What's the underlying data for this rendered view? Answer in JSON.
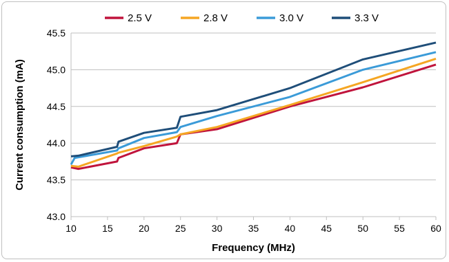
{
  "chart_data": {
    "type": "line",
    "title": "",
    "xlabel": "Frequency (MHz)",
    "ylabel": "Current consumption (mA)",
    "xlim": [
      10,
      60
    ],
    "ylim": [
      43.0,
      45.5
    ],
    "xticks": [
      "10",
      "15",
      "20",
      "25",
      "30",
      "35",
      "40",
      "45",
      "50",
      "55",
      "60"
    ],
    "yticks": [
      "43.0",
      "43.5",
      "44.0",
      "44.5",
      "45.0",
      "45.5"
    ],
    "grid": "horizontal",
    "legend": "top",
    "series": [
      {
        "name": "2.5 V",
        "color": "#c0143c",
        "points": [
          [
            10,
            43.67
          ],
          [
            11,
            43.65
          ],
          [
            16.3,
            43.75
          ],
          [
            16.5,
            43.8
          ],
          [
            20,
            43.93
          ],
          [
            24.5,
            44.0
          ],
          [
            25,
            44.12
          ],
          [
            30,
            44.19
          ],
          [
            40,
            44.5
          ],
          [
            50,
            44.76
          ],
          [
            60,
            45.07
          ]
        ]
      },
      {
        "name": "2.8 V",
        "color": "#f5a623",
        "points": [
          [
            10,
            43.69
          ],
          [
            11,
            43.68
          ],
          [
            16.3,
            43.86
          ],
          [
            16.5,
            43.87
          ],
          [
            20,
            43.96
          ],
          [
            24.5,
            44.09
          ],
          [
            25,
            44.12
          ],
          [
            30,
            44.22
          ],
          [
            40,
            44.52
          ],
          [
            50,
            44.83
          ],
          [
            60,
            45.15
          ]
        ]
      },
      {
        "name": "3.0 V",
        "color": "#3b9bd8",
        "points": [
          [
            10,
            43.71
          ],
          [
            10.5,
            43.8
          ],
          [
            16.3,
            43.9
          ],
          [
            16.5,
            43.93
          ],
          [
            20,
            44.07
          ],
          [
            24.5,
            44.15
          ],
          [
            25,
            44.22
          ],
          [
            30,
            44.37
          ],
          [
            40,
            44.63
          ],
          [
            50,
            45.0
          ],
          [
            60,
            45.24
          ]
        ]
      },
      {
        "name": "3.3 V",
        "color": "#1f4e79",
        "points": [
          [
            10,
            43.82
          ],
          [
            11,
            43.83
          ],
          [
            16.3,
            43.95
          ],
          [
            16.5,
            44.02
          ],
          [
            20,
            44.14
          ],
          [
            24.5,
            44.21
          ],
          [
            25,
            44.36
          ],
          [
            30,
            44.45
          ],
          [
            40,
            44.75
          ],
          [
            50,
            45.14
          ],
          [
            60,
            45.37
          ]
        ]
      }
    ]
  }
}
